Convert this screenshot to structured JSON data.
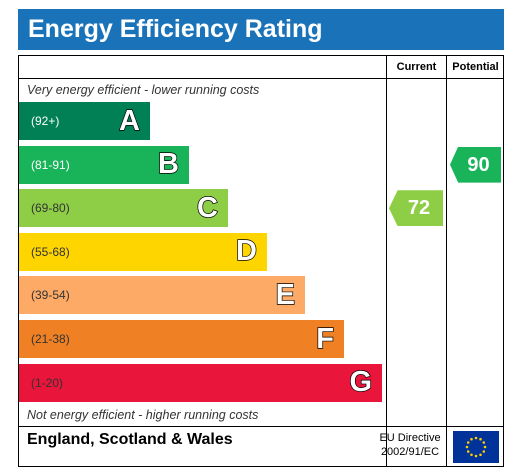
{
  "header": {
    "title": "Energy Efficiency Rating"
  },
  "columns": {
    "current": "Current",
    "potential": "Potential"
  },
  "notes": {
    "top": "Very energy efficient - lower running costs",
    "bottom": "Not energy efficient - higher running costs"
  },
  "chart_data": {
    "type": "bar",
    "categories": [
      "A",
      "B",
      "C",
      "D",
      "E",
      "F",
      "G"
    ],
    "bands": [
      {
        "letter": "A",
        "range": "(92+)",
        "color": "#008054",
        "range_color": "#ffffff"
      },
      {
        "letter": "B",
        "range": "(81-91)",
        "color": "#19b459",
        "range_color": "#ffffff"
      },
      {
        "letter": "C",
        "range": "(69-80)",
        "color": "#8dce46",
        "range_color": "#333333"
      },
      {
        "letter": "D",
        "range": "(55-68)",
        "color": "#ffd500",
        "range_color": "#333333"
      },
      {
        "letter": "E",
        "range": "(39-54)",
        "color": "#fcaa65",
        "range_color": "#333333"
      },
      {
        "letter": "F",
        "range": "(21-38)",
        "color": "#ef8023",
        "range_color": "#333333"
      },
      {
        "letter": "G",
        "range": "(1-20)",
        "color": "#e9153b",
        "range_color": "#333333"
      }
    ],
    "current": {
      "value": "72",
      "band": "C",
      "color": "#8dce46"
    },
    "potential": {
      "value": "90",
      "band": "B",
      "color": "#19b459"
    }
  },
  "footer": {
    "region": "England, Scotland & Wales",
    "directive_line1": "EU Directive",
    "directive_line2": "2002/91/EC"
  }
}
